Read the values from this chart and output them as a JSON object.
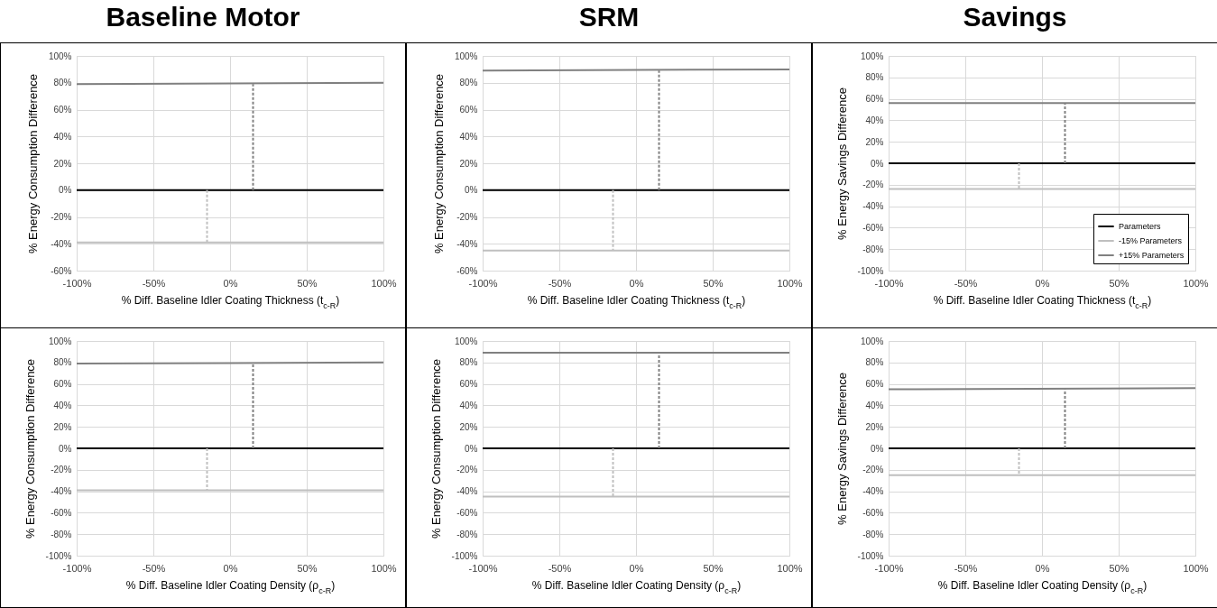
{
  "chart_data": [
    {
      "type": "line",
      "title": "Baseline Motor",
      "xlabel": "% Diff. Baseline Idler Coating Thickness (t$_{c-R}$)",
      "ylabel": "% Energy Consumption Difference",
      "xlim": [
        -100,
        100
      ],
      "xticks": [
        {
          "value": -100,
          "label": "-100%"
        },
        {
          "value": -50,
          "label": "-50%"
        },
        {
          "value": 0,
          "label": "0%"
        },
        {
          "value": 50,
          "label": "50%"
        },
        {
          "value": 100,
          "label": "100%"
        }
      ],
      "ylim": [
        -60,
        100
      ],
      "yticks": [
        {
          "value": -60,
          "label": "-60%"
        },
        {
          "value": -40,
          "label": "-40%"
        },
        {
          "value": -20,
          "label": "-20%"
        },
        {
          "value": 0,
          "label": "0%"
        },
        {
          "value": 20,
          "label": "20%"
        },
        {
          "value": 40,
          "label": "40%"
        },
        {
          "value": 60,
          "label": "60%"
        },
        {
          "value": 80,
          "label": "80%"
        },
        {
          "value": 100,
          "label": "100%"
        }
      ],
      "grid": true,
      "legend": false,
      "line_style": "solid",
      "marker": "none",
      "series": [
        {
          "color": "#000000",
          "x": [
            -100,
            100
          ],
          "values": [
            0,
            0
          ]
        },
        {
          "color": "#bfbfbf",
          "x": [
            -100,
            100
          ],
          "values": [
            -39,
            -39
          ]
        },
        {
          "color": "#808080",
          "x": [
            -100,
            100
          ],
          "values": [
            79,
            80
          ]
        },
        {
          "color": "#bfbfbf",
          "line_style": "dashed",
          "x": [
            -15,
            -15
          ],
          "values": [
            0,
            -39
          ]
        },
        {
          "color": "#808080",
          "line_style": "dashed",
          "x": [
            15,
            15
          ],
          "values": [
            0,
            79
          ]
        }
      ]
    },
    {
      "type": "line",
      "title": "SRM",
      "xlabel": "% Diff. Baseline Idler Coating Thickness (t$_{c-R}$)",
      "ylabel": "% Energy Consumption Difference",
      "xlim": [
        -100,
        100
      ],
      "xticks": [
        {
          "value": -100,
          "label": "-100%"
        },
        {
          "value": -50,
          "label": "-50%"
        },
        {
          "value": 0,
          "label": "0%"
        },
        {
          "value": 50,
          "label": "50%"
        },
        {
          "value": 100,
          "label": "100%"
        }
      ],
      "ylim": [
        -60,
        100
      ],
      "yticks": [
        {
          "value": -60,
          "label": "-60%"
        },
        {
          "value": -40,
          "label": "-40%"
        },
        {
          "value": -20,
          "label": "-20%"
        },
        {
          "value": 0,
          "label": "0%"
        },
        {
          "value": 20,
          "label": "20%"
        },
        {
          "value": 40,
          "label": "40%"
        },
        {
          "value": 60,
          "label": "60%"
        },
        {
          "value": 80,
          "label": "80%"
        },
        {
          "value": 100,
          "label": "100%"
        }
      ],
      "grid": true,
      "legend": false,
      "line_style": "solid",
      "marker": "none",
      "series": [
        {
          "color": "#000000",
          "x": [
            -100,
            100
          ],
          "values": [
            0,
            0
          ]
        },
        {
          "color": "#bfbfbf",
          "x": [
            -100,
            100
          ],
          "values": [
            -45,
            -45
          ]
        },
        {
          "color": "#808080",
          "x": [
            -100,
            100
          ],
          "values": [
            89,
            90
          ]
        },
        {
          "color": "#bfbfbf",
          "line_style": "dashed",
          "x": [
            -15,
            -15
          ],
          "values": [
            0,
            -45
          ]
        },
        {
          "color": "#808080",
          "line_style": "dashed",
          "x": [
            15,
            15
          ],
          "values": [
            0,
            89
          ]
        }
      ]
    },
    {
      "type": "line",
      "title": "Savings",
      "xlabel": "% Diff. Baseline Idler Coating Thickness (t$_{c-R}$)",
      "ylabel": "% Energy Savings Difference",
      "xlim": [
        -100,
        100
      ],
      "xticks": [
        {
          "value": -100,
          "label": "-100%"
        },
        {
          "value": -50,
          "label": "-50%"
        },
        {
          "value": 0,
          "label": "0%"
        },
        {
          "value": 50,
          "label": "50%"
        },
        {
          "value": 100,
          "label": "100%"
        }
      ],
      "ylim": [
        -100,
        100
      ],
      "yticks": [
        {
          "value": -100,
          "label": "-100%"
        },
        {
          "value": -80,
          "label": "-80%"
        },
        {
          "value": -60,
          "label": "-60%"
        },
        {
          "value": -40,
          "label": "-40%"
        },
        {
          "value": -20,
          "label": "-20%"
        },
        {
          "value": 0,
          "label": "0%"
        },
        {
          "value": 20,
          "label": "20%"
        },
        {
          "value": 40,
          "label": "40%"
        },
        {
          "value": 60,
          "label": "60%"
        },
        {
          "value": 80,
          "label": "80%"
        },
        {
          "value": 100,
          "label": "100%"
        }
      ],
      "grid": true,
      "legend": "bottom right",
      "line_style": "solid",
      "marker": "none",
      "series": [
        {
          "name": "Parameters",
          "color": "#000000",
          "x": [
            -100,
            100
          ],
          "values": [
            0,
            0
          ]
        },
        {
          "name": "-15% Parameters",
          "color": "#bfbfbf",
          "x": [
            -100,
            100
          ],
          "values": [
            -24,
            -24
          ]
        },
        {
          "name": "+15% Parameters",
          "color": "#808080",
          "x": [
            -100,
            100
          ],
          "values": [
            56,
            56
          ]
        },
        {
          "color": "#bfbfbf",
          "line_style": "dashed",
          "x": [
            -15,
            -15
          ],
          "values": [
            0,
            -24
          ]
        },
        {
          "color": "#808080",
          "line_style": "dashed",
          "x": [
            15,
            15
          ],
          "values": [
            0,
            56
          ]
        }
      ]
    },
    {
      "type": "line",
      "xlabel": "% Diff. Baseline Idler Coating Density (ρ$_{c-R}$)",
      "ylabel": "% Energy Consumption Difference",
      "xlim": [
        -100,
        100
      ],
      "xticks": [
        {
          "value": -100,
          "label": "-100%"
        },
        {
          "value": -50,
          "label": "-50%"
        },
        {
          "value": 0,
          "label": "0%"
        },
        {
          "value": 50,
          "label": "50%"
        },
        {
          "value": 100,
          "label": "100%"
        }
      ],
      "ylim": [
        -100,
        100
      ],
      "yticks": [
        {
          "value": -100,
          "label": "-100%"
        },
        {
          "value": -80,
          "label": "-80%"
        },
        {
          "value": -60,
          "label": "-60%"
        },
        {
          "value": -40,
          "label": "-40%"
        },
        {
          "value": -20,
          "label": "-20%"
        },
        {
          "value": 0,
          "label": "0%"
        },
        {
          "value": 20,
          "label": "20%"
        },
        {
          "value": 40,
          "label": "40%"
        },
        {
          "value": 60,
          "label": "60%"
        },
        {
          "value": 80,
          "label": "80%"
        },
        {
          "value": 100,
          "label": "100%"
        }
      ],
      "grid": true,
      "legend": false,
      "line_style": "solid",
      "marker": "none",
      "series": [
        {
          "color": "#000000",
          "x": [
            -100,
            100
          ],
          "values": [
            0,
            0
          ]
        },
        {
          "color": "#bfbfbf",
          "x": [
            -100,
            100
          ],
          "values": [
            -39,
            -39
          ]
        },
        {
          "color": "#808080",
          "x": [
            -100,
            100
          ],
          "values": [
            79,
            80
          ]
        },
        {
          "color": "#bfbfbf",
          "line_style": "dashed",
          "x": [
            -15,
            -15
          ],
          "values": [
            0,
            -39
          ]
        },
        {
          "color": "#808080",
          "line_style": "dashed",
          "x": [
            15,
            15
          ],
          "values": [
            0,
            79
          ]
        }
      ]
    },
    {
      "type": "line",
      "xlabel": "% Diff. Baseline Idler Coating Density (ρ$_{c-R}$)",
      "ylabel": "% Energy Consumption Difference",
      "xlim": [
        -100,
        100
      ],
      "xticks": [
        {
          "value": -100,
          "label": "-100%"
        },
        {
          "value": -50,
          "label": "-50%"
        },
        {
          "value": 0,
          "label": "0%"
        },
        {
          "value": 50,
          "label": "50%"
        },
        {
          "value": 100,
          "label": "100%"
        }
      ],
      "ylim": [
        -100,
        100
      ],
      "yticks": [
        {
          "value": -100,
          "label": "-100%"
        },
        {
          "value": -80,
          "label": "-80%"
        },
        {
          "value": -60,
          "label": "-60%"
        },
        {
          "value": -40,
          "label": "-40%"
        },
        {
          "value": -20,
          "label": "-20%"
        },
        {
          "value": 0,
          "label": "0%"
        },
        {
          "value": 20,
          "label": "20%"
        },
        {
          "value": 40,
          "label": "40%"
        },
        {
          "value": 60,
          "label": "60%"
        },
        {
          "value": 80,
          "label": "80%"
        },
        {
          "value": 100,
          "label": "100%"
        }
      ],
      "grid": true,
      "legend": false,
      "line_style": "solid",
      "marker": "none",
      "series": [
        {
          "color": "#000000",
          "x": [
            -100,
            100
          ],
          "values": [
            0,
            0
          ]
        },
        {
          "color": "#bfbfbf",
          "x": [
            -100,
            100
          ],
          "values": [
            -45,
            -45
          ]
        },
        {
          "color": "#808080",
          "x": [
            -100,
            100
          ],
          "values": [
            89,
            89
          ]
        },
        {
          "color": "#bfbfbf",
          "line_style": "dashed",
          "x": [
            -15,
            -15
          ],
          "values": [
            0,
            -45
          ]
        },
        {
          "color": "#808080",
          "line_style": "dashed",
          "x": [
            15,
            15
          ],
          "values": [
            0,
            89
          ]
        }
      ]
    },
    {
      "type": "line",
      "xlabel": "% Diff. Baseline Idler Coating Density (ρ$_{c-R}$)",
      "ylabel": "% Energy Savings Difference",
      "xlim": [
        -100,
        100
      ],
      "xticks": [
        {
          "value": -100,
          "label": "-100%"
        },
        {
          "value": -50,
          "label": "-50%"
        },
        {
          "value": 0,
          "label": "0%"
        },
        {
          "value": 50,
          "label": "50%"
        },
        {
          "value": 100,
          "label": "100%"
        }
      ],
      "ylim": [
        -100,
        100
      ],
      "yticks": [
        {
          "value": -100,
          "label": "-100%"
        },
        {
          "value": -80,
          "label": "-80%"
        },
        {
          "value": -60,
          "label": "-60%"
        },
        {
          "value": -40,
          "label": "-40%"
        },
        {
          "value": -20,
          "label": "-20%"
        },
        {
          "value": 0,
          "label": "0%"
        },
        {
          "value": 20,
          "label": "20%"
        },
        {
          "value": 40,
          "label": "40%"
        },
        {
          "value": 60,
          "label": "60%"
        },
        {
          "value": 80,
          "label": "80%"
        },
        {
          "value": 100,
          "label": "100%"
        }
      ],
      "grid": true,
      "legend": false,
      "line_style": "solid",
      "marker": "none",
      "series": [
        {
          "color": "#000000",
          "x": [
            -100,
            100
          ],
          "values": [
            0,
            0
          ]
        },
        {
          "color": "#bfbfbf",
          "x": [
            -100,
            100
          ],
          "values": [
            -25,
            -25
          ]
        },
        {
          "color": "#808080",
          "x": [
            -100,
            100
          ],
          "values": [
            55,
            56
          ]
        },
        {
          "color": "#bfbfbf",
          "line_style": "dashed",
          "x": [
            -15,
            -15
          ],
          "values": [
            0,
            -25
          ]
        },
        {
          "color": "#808080",
          "line_style": "dashed",
          "x": [
            15,
            15
          ],
          "values": [
            0,
            55
          ]
        }
      ]
    }
  ]
}
